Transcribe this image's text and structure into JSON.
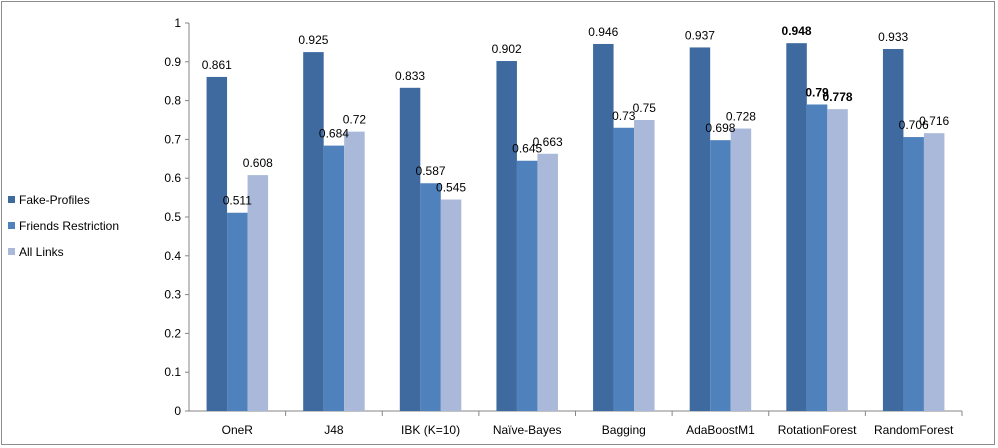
{
  "chart_data": {
    "type": "bar",
    "categories": [
      "OneR",
      "J48",
      "IBK (K=10)",
      "Naïve-Bayes",
      "Bagging",
      "AdaBoostM1",
      "RotationForest",
      "RandomForest"
    ],
    "series": [
      {
        "name": "Fake-Profiles",
        "values": [
          0.861,
          0.925,
          0.833,
          0.902,
          0.946,
          0.937,
          0.948,
          0.933
        ],
        "labels": [
          "0.861",
          "0.925",
          "0.833",
          "0.902",
          "0.946",
          "0.937",
          "0.948",
          "0.933"
        ],
        "color": "#3f6aa0"
      },
      {
        "name": "Friends Restriction",
        "values": [
          0.511,
          0.684,
          0.587,
          0.645,
          0.73,
          0.698,
          0.79,
          0.706
        ],
        "labels": [
          "0.511",
          "0.684",
          "0.587",
          "0.645",
          "0.73",
          "0.698",
          "0.79",
          "0.706"
        ],
        "color": "#4f81bd"
      },
      {
        "name": "All Links",
        "values": [
          0.608,
          0.72,
          0.545,
          0.663,
          0.75,
          0.728,
          0.778,
          0.716
        ],
        "labels": [
          "0.608",
          "0.72",
          "0.545",
          "0.663",
          "0.75",
          "0.728",
          "0.778",
          "0.716"
        ],
        "color": "#aab9d9"
      }
    ],
    "bold_category": "RotationForest",
    "ylim": [
      0,
      1
    ],
    "yticks": [
      "0",
      "0.1",
      "0.2",
      "0.3",
      "0.4",
      "0.5",
      "0.6",
      "0.7",
      "0.8",
      "0.9",
      "1"
    ],
    "title": "",
    "xlabel": "",
    "ylabel": "",
    "grid": false,
    "legend_position": "left"
  }
}
